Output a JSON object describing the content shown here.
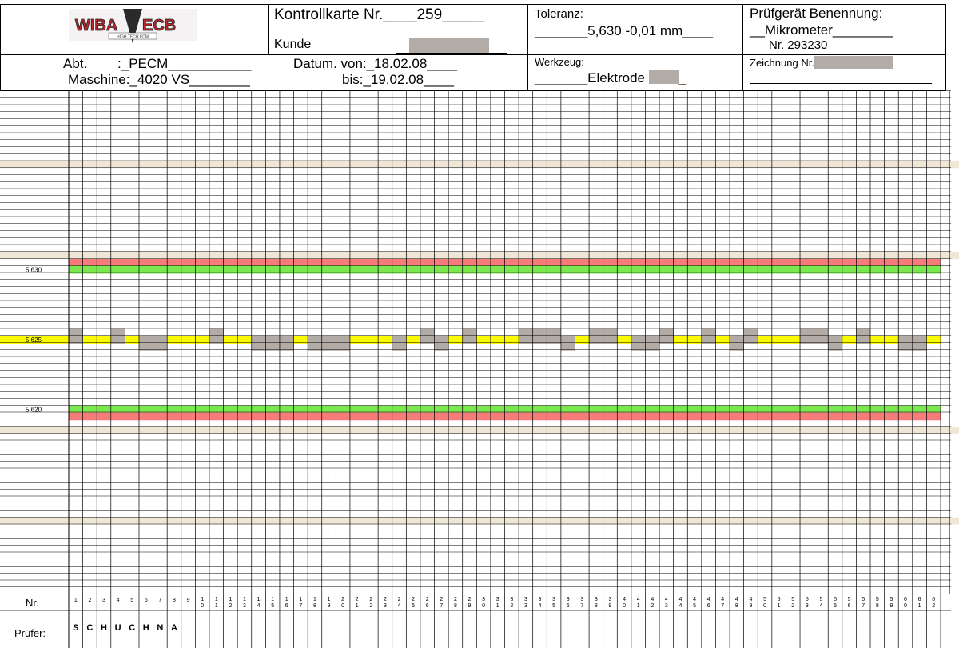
{
  "header": {
    "logo_text_left": "WIBA",
    "logo_text_right": "ECB",
    "logo_subtext": "HIGH TECH ECM",
    "kontrollkarte": "Kontrollkarte Nr.____259_____",
    "kunde": "Kunde",
    "toleranz_label": "Toleranz:",
    "toleranz_value": "_______5,630 -0,01 mm____",
    "pruefgeraet_label": "Prüfgerät  Benennung:",
    "pruefgeraet_name": "__Mikrometer________",
    "pruefgeraet_nr": "Nr. 293230",
    "abt": "Abt.        :_PECM___________",
    "maschine": "Maschine:_4020 VS________",
    "datum_von": "Datum. von:_18.02.08____",
    "datum_bis": "bis:_19.02.08____",
    "werkzeug_label": "Werkzeug:",
    "werkzeug_value": "_______Elektrode",
    "werkzeug_suffix": "_",
    "zeichnung_label": "Zeichnung Nr."
  },
  "axis_labels": [
    "5,630",
    "5,625",
    "5,620"
  ],
  "footer": {
    "nr_label": "Nr.",
    "pruefer_label": "Prüfer:",
    "pruefer_letters": [
      "S",
      "C",
      "H",
      "U",
      "C",
      "H",
      "N",
      "A"
    ],
    "column_numbers": [
      "1",
      "2",
      "3",
      "4",
      "5",
      "6",
      "7",
      "8",
      "9",
      "10",
      "11",
      "12",
      "13",
      "14",
      "15",
      "16",
      "17",
      "18",
      "19",
      "20",
      "21",
      "22",
      "23",
      "24",
      "25",
      "26",
      "27",
      "28",
      "29",
      "30",
      "31",
      "32",
      "33",
      "34",
      "35",
      "36",
      "37",
      "38",
      "39",
      "40",
      "41",
      "42",
      "43",
      "44",
      "45",
      "46",
      "47",
      "48",
      "49",
      "50",
      "51",
      "52",
      "53",
      "54",
      "55",
      "56",
      "57",
      "58",
      "59",
      "60",
      "61",
      "62"
    ]
  },
  "colors": {
    "limit_red": "#f77b7b",
    "limit_green": "#7be84f",
    "target_yellow": "#fafa00",
    "mark_gray": "#b3aba6",
    "band_beige": "#efe6d6"
  },
  "chart_data": {
    "type": "table",
    "title": "Kontrollkarte Nr. 259",
    "ylabel": "mm",
    "upper_limit": 5.63,
    "lower_limit": 5.62,
    "target": 5.625,
    "samples": [
      1,
      2,
      3,
      4,
      5,
      6,
      7,
      8,
      9,
      10,
      11,
      12,
      13,
      14,
      15,
      16,
      17,
      18,
      19,
      20,
      21,
      22,
      23,
      24,
      25,
      26,
      27,
      28,
      29,
      30,
      31,
      32,
      33,
      34,
      35,
      36,
      37,
      38,
      39,
      40,
      41,
      42,
      43,
      44,
      45,
      46,
      47,
      48,
      49,
      50,
      51,
      52,
      53,
      54,
      55,
      56,
      57,
      58,
      59,
      60,
      61,
      62
    ],
    "values": [
      5.6255,
      5.625,
      5.625,
      5.6255,
      5.625,
      5.6245,
      5.6245,
      5.625,
      5.625,
      5.625,
      5.6255,
      5.625,
      5.625,
      5.6245,
      5.6245,
      5.6245,
      5.625,
      5.6245,
      5.6245,
      5.6245,
      5.625,
      5.625,
      5.625,
      5.6245,
      5.625,
      5.6255,
      5.6245,
      5.625,
      5.6255,
      5.625,
      5.625,
      5.625,
      5.6255,
      5.6255,
      5.6255,
      5.6245,
      5.625,
      5.6255,
      5.6255,
      5.625,
      5.6245,
      5.6245,
      5.6255,
      5.625,
      5.625,
      5.6255,
      5.625,
      5.6245,
      5.6255,
      5.625,
      5.625,
      5.625,
      5.6255,
      5.6255,
      5.6245,
      5.625,
      5.6255,
      5.625,
      5.625,
      5.6245,
      5.6245,
      5.625
    ]
  }
}
